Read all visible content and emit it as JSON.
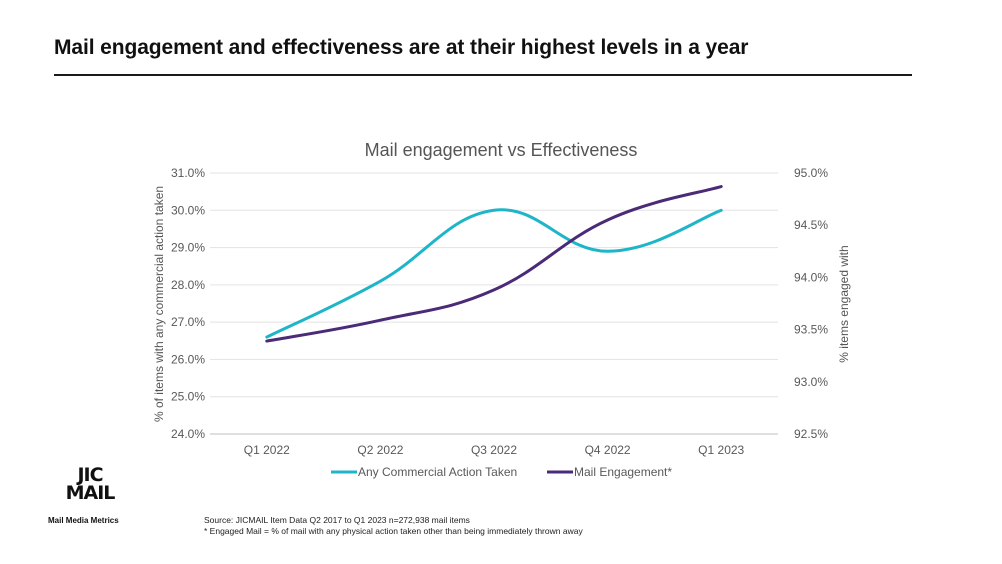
{
  "headline": "Mail engagement  and effectiveness are at their highest levels in a year",
  "chart_data": {
    "type": "line",
    "title": "Mail engagement vs Effectiveness",
    "categories": [
      "Q1 2022",
      "Q2 2022",
      "Q3 2022",
      "Q4 2022",
      "Q1 2023"
    ],
    "y_left": {
      "label": "% of items with any commercial action taken",
      "range": [
        24.0,
        31.0
      ],
      "ticks": [
        "24.0%",
        "25.0%",
        "26.0%",
        "27.0%",
        "28.0%",
        "29.0%",
        "30.0%",
        "31.0%"
      ]
    },
    "y_right": {
      "label": "% items engaged with",
      "range": [
        92.5,
        95.0
      ],
      "ticks": [
        "92.5%",
        "93.0%",
        "93.5%",
        "94.0%",
        "94.5%",
        "95.0%"
      ]
    },
    "series": [
      {
        "name": "Any Commercial Action Taken",
        "axis": "left",
        "color": "#1fb5c9",
        "values": [
          26.6,
          28.1,
          30.0,
          28.9,
          30.0
        ]
      },
      {
        "name": "Mail Engagement*",
        "axis": "right",
        "color": "#4b2a78",
        "values": [
          93.39,
          93.59,
          93.88,
          94.55,
          94.87
        ]
      }
    ],
    "grid": true,
    "legend": "bottom",
    "smooth": true
  },
  "logo": {
    "line1": "JIC",
    "line2": "MAIL",
    "tagline": "Mail Media Metrics"
  },
  "footnote": {
    "line1": "Source: JICMAIL  Item Data Q2 2017 to Q1 2023 n=272,938 mail items",
    "line2": "* Engaged Mail = % of mail with any physical action taken other than being immediately thrown away"
  }
}
